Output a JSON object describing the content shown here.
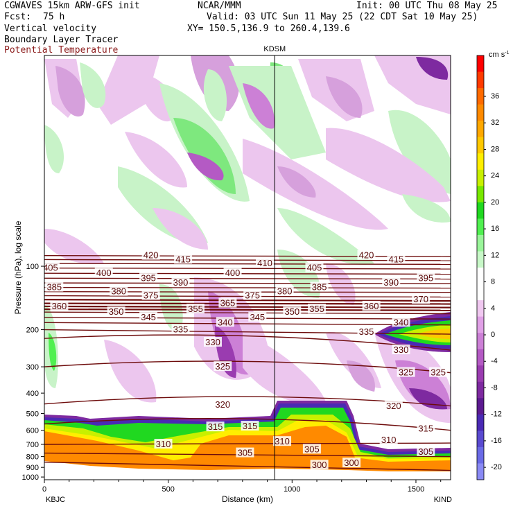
{
  "header": {
    "model": "CGWAVES 15km ARW-GFS init",
    "center": "NCAR/MMM",
    "init": "Init: 00 UTC Thu 08 May 25",
    "fcst_label": "Fcst:",
    "fcst_value": "75 h",
    "valid": "Valid: 03 UTC Sun 11 May 25 (22 CDT Sat 10 May 25)",
    "field1": "Vertical velocity",
    "xy": "XY= 150.5,136.9 to 260.4,139.6",
    "field2": "Boundary Layer Tracer",
    "field3": "Potential Temperature"
  },
  "chart_data": {
    "type": "heatmap",
    "xlabel": "Distance (km)",
    "ylabel": "Pressure (hPa), log scale",
    "xlim": [
      0,
      1640
    ],
    "ylim": [
      1030,
      10
    ],
    "x_ticks": [
      0,
      500,
      1000,
      1500
    ],
    "y_ticks": [
      100,
      200,
      300,
      400,
      500,
      600,
      700,
      800,
      900,
      1000
    ],
    "left_station": "KBJC",
    "right_station": "KIND",
    "marker_station": "KDSM",
    "marker_x_km": 930,
    "colorbar": {
      "unit": "cm s",
      "unit_exp": "-1",
      "labels": [
        36,
        32,
        28,
        24,
        20,
        16,
        12,
        8,
        4,
        0,
        -4,
        -8,
        -12,
        -16,
        -20
      ],
      "colors": [
        "#ff0000",
        "#ff3a00",
        "#ff6a00",
        "#ff8a00",
        "#ffa800",
        "#ffc800",
        "#ffee00",
        "#c8f000",
        "#78e800",
        "#20d820",
        "#50f050",
        "#9af59a",
        "#c8f8c8",
        "#ffffff",
        "#ffffff",
        "#f0c8f0",
        "#e0a0e6",
        "#cc80d6",
        "#b45ac4",
        "#9a3cb0",
        "#7e2aa0",
        "#5c1a90",
        "#4a2ab4",
        "#5a4ad0",
        "#6a6ae6",
        "#8a8af4"
      ]
    },
    "theta_isentropes": [
      {
        "theta": 300,
        "p_left": 850,
        "p_right": 930
      },
      {
        "theta": 305,
        "p_left": 770,
        "p_right": 800
      },
      {
        "theta": 310,
        "p_left": 700,
        "p_right": 690
      },
      {
        "theta": 315,
        "p_left": 560,
        "p_right": 600
      },
      {
        "theta": 320,
        "p_left": 450,
        "p_right": 460
      },
      {
        "theta": 325,
        "p_left": 300,
        "p_right": 320
      },
      {
        "theta": 330,
        "p_left": 220,
        "p_right": 250
      },
      {
        "theta": 335,
        "p_left": 200,
        "p_right": 210
      },
      {
        "theta": 340,
        "p_left": 185,
        "p_right": 190
      },
      {
        "theta": 345,
        "p_left": 175,
        "p_right": 178
      },
      {
        "theta": 350,
        "p_left": 165,
        "p_right": 168
      },
      {
        "theta": 355,
        "p_left": 160,
        "p_right": 162
      },
      {
        "theta": 360,
        "p_left": 155,
        "p_right": 157
      },
      {
        "theta": 365,
        "p_left": 150,
        "p_right": 151
      },
      {
        "theta": 370,
        "p_left": 144,
        "p_right": 146
      },
      {
        "theta": 375,
        "p_left": 138,
        "p_right": 140
      },
      {
        "theta": 380,
        "p_left": 132,
        "p_right": 133
      },
      {
        "theta": 385,
        "p_left": 126,
        "p_right": 127
      },
      {
        "theta": 390,
        "p_left": 120,
        "p_right": 121
      },
      {
        "theta": 395,
        "p_left": 114,
        "p_right": 115
      },
      {
        "theta": 400,
        "p_left": 108,
        "p_right": 109
      },
      {
        "theta": 405,
        "p_left": 102,
        "p_right": 103
      },
      {
        "theta": 410,
        "p_left": 97,
        "p_right": 98
      },
      {
        "theta": 415,
        "p_left": 93,
        "p_right": 94
      },
      {
        "theta": 420,
        "p_left": 89,
        "p_right": 90
      }
    ],
    "contour_labels": [
      {
        "text": "420",
        "x": 430,
        "p": 89
      },
      {
        "text": "415",
        "x": 560,
        "p": 93
      },
      {
        "text": "405",
        "x": 25,
        "p": 102
      },
      {
        "text": "410",
        "x": 890,
        "p": 97
      },
      {
        "text": "420",
        "x": 1300,
        "p": 89
      },
      {
        "text": "415",
        "x": 1420,
        "p": 93
      },
      {
        "text": "400",
        "x": 240,
        "p": 108
      },
      {
        "text": "405",
        "x": 1090,
        "p": 102
      },
      {
        "text": "395",
        "x": 420,
        "p": 114
      },
      {
        "text": "400",
        "x": 760,
        "p": 108
      },
      {
        "text": "395",
        "x": 1540,
        "p": 114
      },
      {
        "text": "385",
        "x": 40,
        "p": 126
      },
      {
        "text": "390",
        "x": 550,
        "p": 120
      },
      {
        "text": "390",
        "x": 1400,
        "p": 120
      },
      {
        "text": "380",
        "x": 300,
        "p": 132
      },
      {
        "text": "375",
        "x": 430,
        "p": 138
      },
      {
        "text": "375",
        "x": 840,
        "p": 138
      },
      {
        "text": "380",
        "x": 970,
        "p": 132
      },
      {
        "text": "385",
        "x": 1110,
        "p": 126
      },
      {
        "text": "370",
        "x": 1520,
        "p": 144
      },
      {
        "text": "360",
        "x": 60,
        "p": 155
      },
      {
        "text": "365",
        "x": 740,
        "p": 150
      },
      {
        "text": "360",
        "x": 1320,
        "p": 155
      },
      {
        "text": "350",
        "x": 290,
        "p": 165
      },
      {
        "text": "345",
        "x": 420,
        "p": 175
      },
      {
        "text": "355",
        "x": 610,
        "p": 160
      },
      {
        "text": "350",
        "x": 1000,
        "p": 165
      },
      {
        "text": "355",
        "x": 1100,
        "p": 160
      },
      {
        "text": "340",
        "x": 730,
        "p": 185
      },
      {
        "text": "345",
        "x": 860,
        "p": 175
      },
      {
        "text": "340",
        "x": 1440,
        "p": 185
      },
      {
        "text": "335",
        "x": 550,
        "p": 200
      },
      {
        "text": "335",
        "x": 1300,
        "p": 205
      },
      {
        "text": "330",
        "x": 680,
        "p": 230
      },
      {
        "text": "330",
        "x": 1440,
        "p": 250
      },
      {
        "text": "325",
        "x": 720,
        "p": 300
      },
      {
        "text": "325",
        "x": 1460,
        "p": 320
      },
      {
        "text": "325",
        "x": 1590,
        "p": 320
      },
      {
        "text": "320",
        "x": 720,
        "p": 455
      },
      {
        "text": "320",
        "x": 1410,
        "p": 462
      },
      {
        "text": "315",
        "x": 690,
        "p": 580
      },
      {
        "text": "315",
        "x": 830,
        "p": 575
      },
      {
        "text": "315",
        "x": 1540,
        "p": 590
      },
      {
        "text": "310",
        "x": 480,
        "p": 700
      },
      {
        "text": "310",
        "x": 960,
        "p": 680
      },
      {
        "text": "310",
        "x": 1390,
        "p": 670
      },
      {
        "text": "305",
        "x": 810,
        "p": 770
      },
      {
        "text": "305",
        "x": 1080,
        "p": 740
      },
      {
        "text": "305",
        "x": 1540,
        "p": 760
      },
      {
        "text": "300",
        "x": 1110,
        "p": 880
      },
      {
        "text": "300",
        "x": 1240,
        "p": 860
      }
    ]
  }
}
